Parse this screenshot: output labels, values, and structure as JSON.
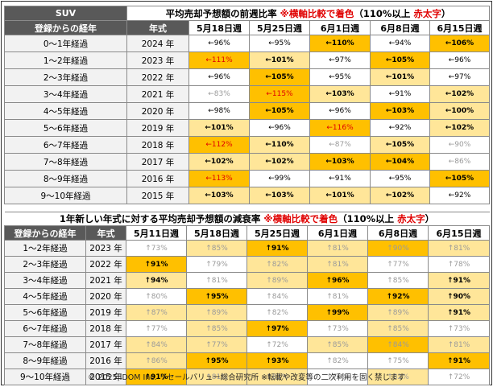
{
  "table1": {
    "corner": "SUV",
    "title_main": "平均売却予想額の前週比率",
    "title_note": "※横軸比較で着色",
    "title_paren_open": "（110%以上",
    "title_red": "赤太字",
    "title_paren_close": "）",
    "col_label": "登録からの経年",
    "col_year": "年式",
    "dates": [
      "5月18日週",
      "5月25日週",
      "6月1日週",
      "6月8日週",
      "6月15日週"
    ],
    "rows": [
      {
        "label": "0～1年経過",
        "year": "2024 年",
        "cells": [
          {
            "t": "←96%",
            "bg": "#ffffff",
            "red": false,
            "b": false
          },
          {
            "t": "←95%",
            "bg": "#ffffff",
            "red": false,
            "b": false
          },
          {
            "t": "←110%",
            "bg": "#ffc000",
            "red": false,
            "b": true
          },
          {
            "t": "←94%",
            "bg": "#ffffff",
            "red": false,
            "b": false
          },
          {
            "t": "←106%",
            "bg": "#ffc000",
            "red": false,
            "b": true
          }
        ]
      },
      {
        "label": "1～2年経過",
        "year": "2023 年",
        "cells": [
          {
            "t": "←111%",
            "bg": "#ffc000",
            "red": true,
            "b": false
          },
          {
            "t": "←101%",
            "bg": "#ffe699",
            "red": false,
            "b": true
          },
          {
            "t": "←97%",
            "bg": "#ffffff",
            "red": false,
            "b": false
          },
          {
            "t": "←105%",
            "bg": "#ffc000",
            "red": false,
            "b": true
          },
          {
            "t": "←96%",
            "bg": "#ffffff",
            "red": false,
            "b": false
          }
        ]
      },
      {
        "label": "2～3年経過",
        "year": "2022 年",
        "cells": [
          {
            "t": "←96%",
            "bg": "#ffffff",
            "red": false,
            "b": false
          },
          {
            "t": "←105%",
            "bg": "#ffc000",
            "red": false,
            "b": true
          },
          {
            "t": "←95%",
            "bg": "#ffffff",
            "red": false,
            "b": false
          },
          {
            "t": "←101%",
            "bg": "#ffe699",
            "red": false,
            "b": true
          },
          {
            "t": "←97%",
            "bg": "#ffffff",
            "red": false,
            "b": false
          }
        ]
      },
      {
        "label": "3～4年経過",
        "year": "2021 年",
        "cells": [
          {
            "t": "←83%",
            "bg": "#ffffff",
            "red": false,
            "b": false,
            "grey": true
          },
          {
            "t": "←115%",
            "bg": "#ffc000",
            "red": true,
            "b": false
          },
          {
            "t": "←103%",
            "bg": "#ffe699",
            "red": false,
            "b": true
          },
          {
            "t": "←91%",
            "bg": "#ffffff",
            "red": false,
            "b": false
          },
          {
            "t": "←102%",
            "bg": "#ffe699",
            "red": false,
            "b": true
          }
        ]
      },
      {
        "label": "4～5年経過",
        "year": "2020 年",
        "cells": [
          {
            "t": "←98%",
            "bg": "#ffffff",
            "red": false,
            "b": false
          },
          {
            "t": "←105%",
            "bg": "#ffc000",
            "red": false,
            "b": true
          },
          {
            "t": "←96%",
            "bg": "#ffffff",
            "red": false,
            "b": false
          },
          {
            "t": "←103%",
            "bg": "#ffc000",
            "red": false,
            "b": true
          },
          {
            "t": "←100%",
            "bg": "#ffe699",
            "red": false,
            "b": true
          }
        ]
      },
      {
        "label": "5～6年経過",
        "year": "2019 年",
        "cells": [
          {
            "t": "←101%",
            "bg": "#ffe699",
            "red": false,
            "b": true
          },
          {
            "t": "←96%",
            "bg": "#ffffff",
            "red": false,
            "b": false
          },
          {
            "t": "←116%",
            "bg": "#ffc000",
            "red": true,
            "b": false
          },
          {
            "t": "←92%",
            "bg": "#ffffff",
            "red": false,
            "b": false
          },
          {
            "t": "←102%",
            "bg": "#ffe699",
            "red": false,
            "b": true
          }
        ]
      },
      {
        "label": "6～7年経過",
        "year": "2018 年",
        "cells": [
          {
            "t": "←112%",
            "bg": "#ffc000",
            "red": true,
            "b": false
          },
          {
            "t": "←110%",
            "bg": "#ffe699",
            "red": false,
            "b": true
          },
          {
            "t": "←87%",
            "bg": "#ffffff",
            "red": false,
            "b": false,
            "grey": true
          },
          {
            "t": "←105%",
            "bg": "#ffe699",
            "red": false,
            "b": true
          },
          {
            "t": "←90%",
            "bg": "#ffffff",
            "red": false,
            "b": false,
            "grey": true
          }
        ]
      },
      {
        "label": "7～8年経過",
        "year": "2017 年",
        "cells": [
          {
            "t": "←102%",
            "bg": "#ffe699",
            "red": false,
            "b": true
          },
          {
            "t": "←102%",
            "bg": "#ffe699",
            "red": false,
            "b": true
          },
          {
            "t": "←103%",
            "bg": "#ffc000",
            "red": false,
            "b": true
          },
          {
            "t": "←104%",
            "bg": "#ffc000",
            "red": false,
            "b": true
          },
          {
            "t": "←86%",
            "bg": "#ffffff",
            "red": false,
            "b": false,
            "grey": true
          }
        ]
      },
      {
        "label": "8～9年経過",
        "year": "2016 年",
        "cells": [
          {
            "t": "←113%",
            "bg": "#ffc000",
            "red": true,
            "b": false
          },
          {
            "t": "←99%",
            "bg": "#ffffff",
            "red": false,
            "b": false
          },
          {
            "t": "←91%",
            "bg": "#ffffff",
            "red": false,
            "b": false
          },
          {
            "t": "←95%",
            "bg": "#ffffff",
            "red": false,
            "b": false
          },
          {
            "t": "←105%",
            "bg": "#ffc000",
            "red": false,
            "b": true
          }
        ]
      },
      {
        "label": "9～10年経過",
        "year": "2015 年",
        "cells": [
          {
            "t": "←103%",
            "bg": "#ffe699",
            "red": false,
            "b": true
          },
          {
            "t": "←103%",
            "bg": "#ffe699",
            "red": false,
            "b": true
          },
          {
            "t": "←101%",
            "bg": "#ffe699",
            "red": false,
            "b": true
          },
          {
            "t": "←102%",
            "bg": "#ffe699",
            "red": false,
            "b": true
          },
          {
            "t": "←92%",
            "bg": "#ffffff",
            "red": false,
            "b": false
          }
        ]
      }
    ]
  },
  "table2": {
    "title_main": "1年新しい年式に対する平均売却予想額の減衰率",
    "title_note": "※横軸比較で着色",
    "title_paren_open": "（110%以上",
    "title_red": "赤太字",
    "title_paren_close": "）",
    "col_label": "登録からの経年",
    "col_year": "年式",
    "dates": [
      "5月11日週",
      "5月18日週",
      "5月25日週",
      "6月1日週",
      "6月8日週",
      "6月15日週"
    ],
    "rows": [
      {
        "label": "1～2年経過",
        "year": "2023 年",
        "cells": [
          {
            "t": "↑73%",
            "bg": "#ffffff",
            "grey": true
          },
          {
            "t": "↑85%",
            "bg": "#ffe699",
            "grey": true
          },
          {
            "t": "↑91%",
            "bg": "#ffc000",
            "b": true
          },
          {
            "t": "↑81%",
            "bg": "#ffe699",
            "grey": true
          },
          {
            "t": "↑90%",
            "bg": "#ffc000",
            "grey": true
          },
          {
            "t": "↑81%",
            "bg": "#ffe699",
            "grey": true
          }
        ]
      },
      {
        "label": "2～3年経過",
        "year": "2022 年",
        "cells": [
          {
            "t": "↑91%",
            "bg": "#ffc000",
            "b": true
          },
          {
            "t": "↑79%",
            "bg": "#ffffff",
            "grey": true
          },
          {
            "t": "↑82%",
            "bg": "#ffe699",
            "grey": true
          },
          {
            "t": "↑81%",
            "bg": "#ffe699",
            "grey": true
          },
          {
            "t": "↑77%",
            "bg": "#ffffff",
            "grey": true
          },
          {
            "t": "↑78%",
            "bg": "#ffffff",
            "grey": true
          }
        ]
      },
      {
        "label": "3～4年経過",
        "year": "2021 年",
        "cells": [
          {
            "t": "↑94%",
            "bg": "#ffe699",
            "b": true
          },
          {
            "t": "↑81%",
            "bg": "#ffffff",
            "grey": true
          },
          {
            "t": "↑89%",
            "bg": "#ffe699",
            "grey": true
          },
          {
            "t": "↑96%",
            "bg": "#ffc000",
            "b": true
          },
          {
            "t": "↑85%",
            "bg": "#ffffff",
            "grey": true
          },
          {
            "t": "↑91%",
            "bg": "#ffe699",
            "b": true
          }
        ]
      },
      {
        "label": "4～5年経過",
        "year": "2020 年",
        "cells": [
          {
            "t": "↑80%",
            "bg": "#ffffff",
            "grey": true
          },
          {
            "t": "↑95%",
            "bg": "#ffc000",
            "b": true
          },
          {
            "t": "↑84%",
            "bg": "#ffffff",
            "grey": true
          },
          {
            "t": "↑81%",
            "bg": "#ffffff",
            "grey": true
          },
          {
            "t": "↑92%",
            "bg": "#ffc000",
            "b": true
          },
          {
            "t": "↑90%",
            "bg": "#ffe699",
            "b": true
          }
        ]
      },
      {
        "label": "5～6年経過",
        "year": "2019 年",
        "cells": [
          {
            "t": "↑87%",
            "bg": "#ffe699",
            "grey": true
          },
          {
            "t": "↑89%",
            "bg": "#ffe699",
            "grey": true
          },
          {
            "t": "↑82%",
            "bg": "#ffffff",
            "grey": true
          },
          {
            "t": "↑99%",
            "bg": "#ffc000",
            "b": true
          },
          {
            "t": "↑89%",
            "bg": "#ffe699",
            "grey": true
          },
          {
            "t": "↑91%",
            "bg": "#ffe699",
            "b": true
          }
        ]
      },
      {
        "label": "6～7年経過",
        "year": "2018 年",
        "cells": [
          {
            "t": "↑77%",
            "bg": "#ffffff",
            "grey": true
          },
          {
            "t": "↑85%",
            "bg": "#ffe699",
            "grey": true
          },
          {
            "t": "↑97%",
            "bg": "#ffc000",
            "b": true
          },
          {
            "t": "↑73%",
            "bg": "#ffffff",
            "grey": true
          },
          {
            "t": "↑85%",
            "bg": "#ffe699",
            "grey": true
          },
          {
            "t": "↑73%",
            "bg": "#ffffff",
            "grey": true
          }
        ]
      },
      {
        "label": "7～8年経過",
        "year": "2017 年",
        "cells": [
          {
            "t": "↑84%",
            "bg": "#ffe699",
            "grey": true
          },
          {
            "t": "↑77%",
            "bg": "#ffe699",
            "grey": true
          },
          {
            "t": "↑72%",
            "bg": "#ffffff",
            "grey": true
          },
          {
            "t": "↑85%",
            "bg": "#ffe699",
            "grey": true
          },
          {
            "t": "↑84%",
            "bg": "#ffc000",
            "grey": true
          },
          {
            "t": "↑81%",
            "bg": "#ffe699",
            "grey": true
          }
        ]
      },
      {
        "label": "8～9年経過",
        "year": "2016 年",
        "cells": [
          {
            "t": "↑86%",
            "bg": "#ffe699",
            "grey": true
          },
          {
            "t": "↑95%",
            "bg": "#ffc000",
            "b": true
          },
          {
            "t": "↑93%",
            "bg": "#ffc000",
            "b": true
          },
          {
            "t": "↑82%",
            "bg": "#ffffff",
            "grey": true
          },
          {
            "t": "↑75%",
            "bg": "#ffffff",
            "grey": true
          },
          {
            "t": "↑91%",
            "bg": "#ffc000",
            "b": true
          }
        ]
      },
      {
        "label": "9～10年経過",
        "year": "2015 年",
        "cells": [
          {
            "t": "↑91%",
            "bg": "#ffc000",
            "b": true
          },
          {
            "t": "↑81%",
            "bg": "#ffe699",
            "grey": true
          },
          {
            "t": "↑81%",
            "bg": "#ffe699",
            "grey": true
          },
          {
            "t": "↑76%",
            "bg": "#ffffff",
            "grey": true
          },
          {
            "t": "↑82%",
            "bg": "#ffe699",
            "grey": true
          },
          {
            "t": "↑72%",
            "bg": "#ffffff",
            "grey": true
          }
        ]
      }
    ]
  },
  "footer": "© 2025 IDOM Inc. リセールバリュー総合研究所 ※転載や改変等の二次利用を固く禁じます",
  "colors": {
    "header": "#595959",
    "strong": "#ffc000",
    "light": "#ffe699",
    "red": "#e00000"
  }
}
